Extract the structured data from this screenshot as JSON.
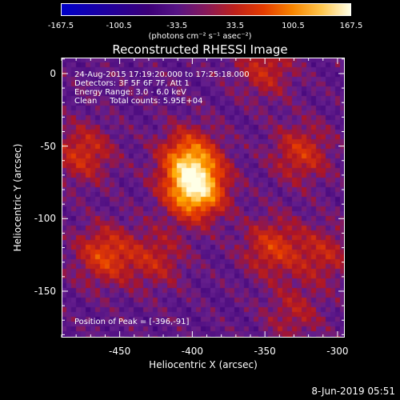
{
  "colorbar": {
    "ticks": [
      "-167.5",
      "-100.5",
      "-33.5",
      "33.5",
      "100.5",
      "167.5"
    ],
    "units": "(photons cm⁻² s⁻¹ asec⁻²)"
  },
  "info": {
    "time": "24-Aug-2015 17:19:20.000 to 17:25:18.000",
    "detectors": "Detectors: 3F 5F 6F 7F, Att 1",
    "energy": "Energy Range: 3.0 - 6.0 keV",
    "clean": "Clean     Total counts: 5.95E+04",
    "peak": "Position of Peak = [-396,-91]"
  },
  "footer_date": "8-Jun-2019 05:51",
  "chart_data": {
    "type": "heatmap",
    "title": "Reconstructed RHESSI Image",
    "xlabel": "Heliocentric X (arcsec)",
    "ylabel": "Heliocentric Y (arcsec)",
    "xlim": [
      -490,
      -295
    ],
    "ylim": [
      -182,
      11
    ],
    "xticks": [
      -450,
      -400,
      -350,
      -300
    ],
    "xtick_labels": [
      "-450",
      "-400",
      "-350",
      "-300"
    ],
    "yticks": [
      0,
      -50,
      -100,
      -150
    ],
    "ytick_labels": [
      "0",
      "-50",
      "-100",
      "-150"
    ],
    "colorbar_range": [
      -167.5,
      167.5
    ],
    "peak": [
      -396,
      -91
    ],
    "sources": [
      {
        "x": -398,
        "y": -80,
        "amp": 170
      },
      {
        "x": -402,
        "y": -58,
        "amp": 110
      },
      {
        "x": -460,
        "y": -125,
        "amp": 85
      },
      {
        "x": -425,
        "y": -128,
        "amp": 55
      },
      {
        "x": -475,
        "y": -55,
        "amp": 70
      },
      {
        "x": -345,
        "y": -120,
        "amp": 75
      },
      {
        "x": -310,
        "y": -125,
        "amp": 55
      },
      {
        "x": -325,
        "y": -55,
        "amp": 70
      },
      {
        "x": -350,
        "y": 3,
        "amp": 60
      },
      {
        "x": -330,
        "y": -165,
        "amp": 45
      }
    ]
  }
}
